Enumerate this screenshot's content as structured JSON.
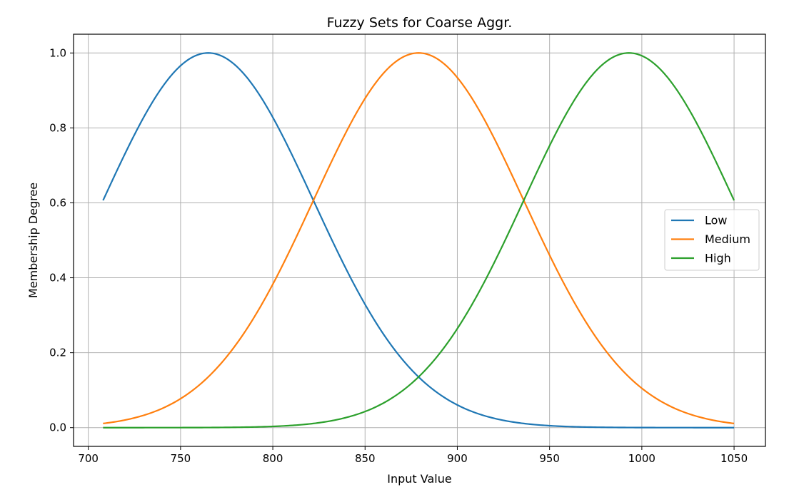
{
  "chart_data": {
    "type": "line",
    "title": "Fuzzy Sets for Coarse Aggr.",
    "xlabel": "Input Value",
    "ylabel": "Membership Degree",
    "xlim": [
      692,
      1067
    ],
    "ylim": [
      -0.05,
      1.05
    ],
    "xticks": [
      700,
      750,
      800,
      850,
      900,
      950,
      1000,
      1050
    ],
    "yticks": [
      0.0,
      0.2,
      0.4,
      0.6,
      0.8,
      1.0
    ],
    "xtick_labels": [
      "700",
      "750",
      "800",
      "850",
      "900",
      "950",
      "1000",
      "1050"
    ],
    "ytick_labels": [
      "0.0",
      "0.2",
      "0.4",
      "0.6",
      "0.8",
      "1.0"
    ],
    "grid": true,
    "legend_position": "center-right",
    "x_range": [
      708,
      1050
    ],
    "series": [
      {
        "name": "Low",
        "color": "#1f77b4",
        "function": "gaussian",
        "mean": 765,
        "sigma": 57,
        "points": [
          [
            708,
            0.607
          ],
          [
            720,
            0.73
          ],
          [
            740,
            0.908
          ],
          [
            765,
            1.0
          ],
          [
            790,
            0.91
          ],
          [
            800,
            0.83
          ],
          [
            822,
            0.61
          ],
          [
            850,
            0.33
          ],
          [
            880,
            0.13
          ],
          [
            900,
            0.06
          ],
          [
            950,
            0.005
          ],
          [
            1000,
            0.0
          ],
          [
            1050,
            0.0
          ]
        ]
      },
      {
        "name": "Medium",
        "color": "#ff7f0e",
        "function": "gaussian",
        "mean": 879,
        "sigma": 57,
        "points": [
          [
            708,
            0.011
          ],
          [
            750,
            0.08
          ],
          [
            800,
            0.38
          ],
          [
            822,
            0.61
          ],
          [
            850,
            0.88
          ],
          [
            879,
            1.0
          ],
          [
            900,
            0.93
          ],
          [
            936,
            0.61
          ],
          [
            950,
            0.46
          ],
          [
            1000,
            0.1
          ],
          [
            1050,
            0.011
          ]
        ]
      },
      {
        "name": "High",
        "color": "#2ca02c",
        "function": "gaussian",
        "mean": 993,
        "sigma": 57,
        "points": [
          [
            708,
            0.0
          ],
          [
            800,
            0.003
          ],
          [
            850,
            0.043
          ],
          [
            880,
            0.14
          ],
          [
            900,
            0.26
          ],
          [
            936,
            0.61
          ],
          [
            950,
            0.75
          ],
          [
            993,
            1.0
          ],
          [
            1020,
            0.9
          ],
          [
            1050,
            0.607
          ]
        ]
      }
    ]
  }
}
